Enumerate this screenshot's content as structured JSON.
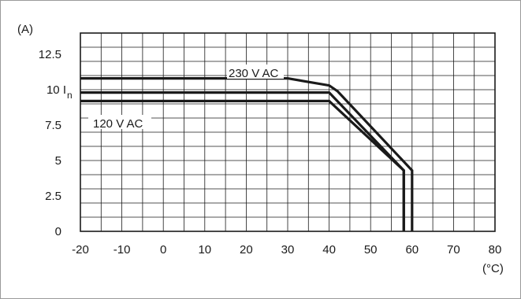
{
  "chart_data": {
    "type": "line",
    "ylabel": "(A)",
    "xlabel": "(°C)",
    "xlim": [
      -20,
      80
    ],
    "ylim": [
      0,
      14
    ],
    "x_ticks": [
      -20,
      -10,
      0,
      10,
      20,
      30,
      40,
      50,
      60,
      70,
      80
    ],
    "x_tick_labels": [
      "-20",
      "-10",
      "0",
      "10",
      "20",
      "30",
      "40",
      "50",
      "60",
      "70",
      "80"
    ],
    "y_ticks": [
      0,
      2.5,
      5,
      7.5,
      10,
      12.5
    ],
    "y_tick_labels": [
      "0",
      "2.5",
      "5",
      "7.5",
      "10 I",
      "12.5"
    ],
    "y_tick_subscripts": [
      "",
      "",
      "",
      "",
      "n",
      ""
    ],
    "grid": true,
    "series": [
      {
        "name": "230 V AC",
        "x": [
          -20,
          30,
          40,
          42,
          60,
          60
        ],
        "y": [
          10.8,
          10.8,
          10.3,
          9.9,
          4.3,
          0
        ]
      },
      {
        "name": "",
        "x": [
          -20,
          40,
          58,
          58
        ],
        "y": [
          9.8,
          9.8,
          4.3,
          0
        ]
      },
      {
        "name": "120 V AC",
        "x": [
          -20,
          40,
          58,
          58
        ],
        "y": [
          9.2,
          9.2,
          4.3,
          0
        ]
      }
    ],
    "annotations": [
      {
        "text": "230 V AC",
        "series": 0
      },
      {
        "text": "120 V AC",
        "series": 2
      }
    ]
  }
}
